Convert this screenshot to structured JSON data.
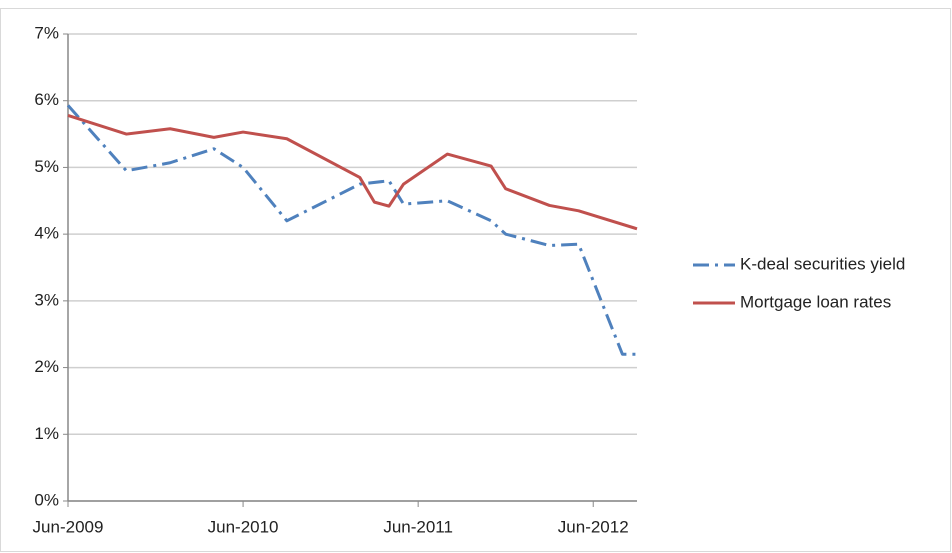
{
  "chart_data": {
    "type": "line",
    "xlim": [
      "2009-06",
      "2012-09"
    ],
    "xticks": [
      {
        "value": "2009-06",
        "label": "Jun-2009"
      },
      {
        "value": "2010-06",
        "label": "Jun-2010"
      },
      {
        "value": "2011-06",
        "label": "Jun-2011"
      },
      {
        "value": "2012-06",
        "label": "Jun-2012"
      }
    ],
    "ylim": [
      0,
      7
    ],
    "yticks": [
      {
        "value": 0,
        "label": "0%"
      },
      {
        "value": 1,
        "label": "1%"
      },
      {
        "value": 2,
        "label": "2%"
      },
      {
        "value": 3,
        "label": "3%"
      },
      {
        "value": 4,
        "label": "4%"
      },
      {
        "value": 5,
        "label": "5%"
      },
      {
        "value": 6,
        "label": "6%"
      },
      {
        "value": 7,
        "label": "7%"
      }
    ],
    "grid": true,
    "legend": "right",
    "series": [
      {
        "name": "K-deal securities yield",
        "color": "#4f81bd",
        "dash": "dash-dot",
        "x": [
          "2009-06",
          "2009-10",
          "2010-01",
          "2010-04",
          "2010-06",
          "2010-09",
          "2011-02",
          "2011-04",
          "2011-05",
          "2011-08",
          "2011-11",
          "2011-12",
          "2012-03",
          "2012-05",
          "2012-08",
          "2012-09"
        ],
        "values": [
          5.93,
          4.95,
          5.07,
          5.28,
          5.0,
          4.2,
          4.75,
          4.8,
          4.45,
          4.5,
          4.2,
          4.0,
          3.83,
          3.85,
          2.2,
          2.2
        ]
      },
      {
        "name": "Mortgage loan rates",
        "color": "#c0504d",
        "dash": "solid",
        "x": [
          "2009-06",
          "2009-10",
          "2010-01",
          "2010-04",
          "2010-06",
          "2010-09",
          "2011-02",
          "2011-03",
          "2011-04",
          "2011-05",
          "2011-08",
          "2011-11",
          "2011-12",
          "2012-03",
          "2012-05",
          "2012-09"
        ],
        "values": [
          5.78,
          5.5,
          5.58,
          5.45,
          5.53,
          5.43,
          4.85,
          4.48,
          4.42,
          4.75,
          5.2,
          5.02,
          4.68,
          4.43,
          4.35,
          4.08
        ]
      }
    ]
  }
}
